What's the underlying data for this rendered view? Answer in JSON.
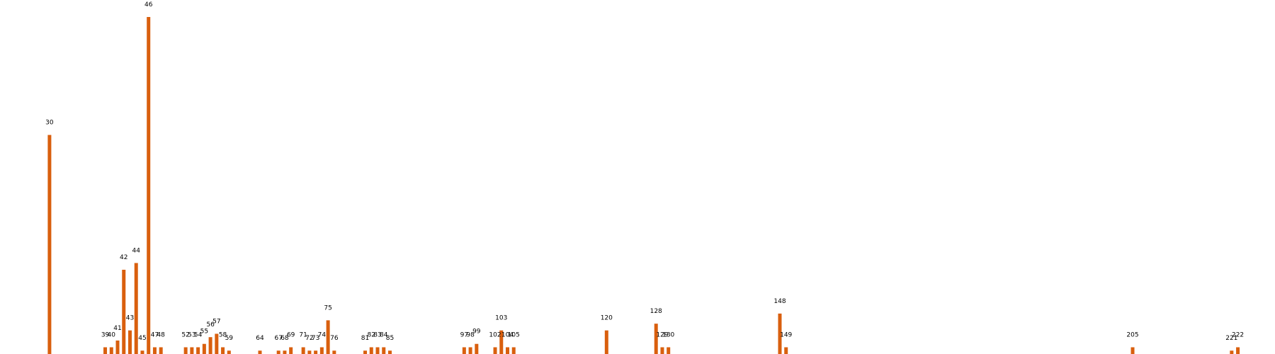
{
  "chart_data": {
    "type": "bar",
    "title": "",
    "xlabel": "",
    "ylabel": "",
    "xlim": [
      22,
      228
    ],
    "ylim": [
      0,
      100
    ],
    "grid": false,
    "legend": "none",
    "bar_color": "#d95f0e",
    "categories": [
      30,
      39,
      40,
      41,
      42,
      43,
      44,
      45,
      46,
      47,
      48,
      52,
      53,
      54,
      55,
      56,
      57,
      58,
      59,
      64,
      67,
      68,
      69,
      71,
      72,
      73,
      74,
      75,
      76,
      81,
      82,
      83,
      84,
      85,
      97,
      98,
      99,
      102,
      103,
      104,
      105,
      120,
      128,
      129,
      130,
      148,
      149,
      205,
      221,
      222
    ],
    "labels": [
      "30",
      "39",
      "40",
      "41",
      "42",
      "43",
      "44",
      "45",
      "46",
      "47",
      "48",
      "52",
      "53",
      "54",
      "55",
      "56",
      "57",
      "58",
      "59",
      "64",
      "67",
      "68",
      "69",
      "71",
      "72",
      "73",
      "74",
      "75",
      "76",
      "81",
      "82",
      "83",
      "84",
      "85",
      "97",
      "98",
      "99",
      "102",
      "103",
      "104",
      "105",
      "120",
      "128",
      "129",
      "130",
      "148",
      "149",
      "205",
      "221",
      "222"
    ],
    "values": [
      65,
      2,
      2,
      4,
      25,
      7,
      27,
      1,
      100,
      2,
      2,
      2,
      2,
      2,
      3,
      5,
      6,
      2,
      1,
      1,
      1,
      1,
      2,
      2,
      1,
      1,
      2,
      10,
      1,
      1,
      2,
      2,
      2,
      1,
      2,
      2,
      3,
      2,
      7,
      2,
      2,
      7,
      9,
      2,
      2,
      12,
      2,
      2,
      1,
      2
    ]
  }
}
